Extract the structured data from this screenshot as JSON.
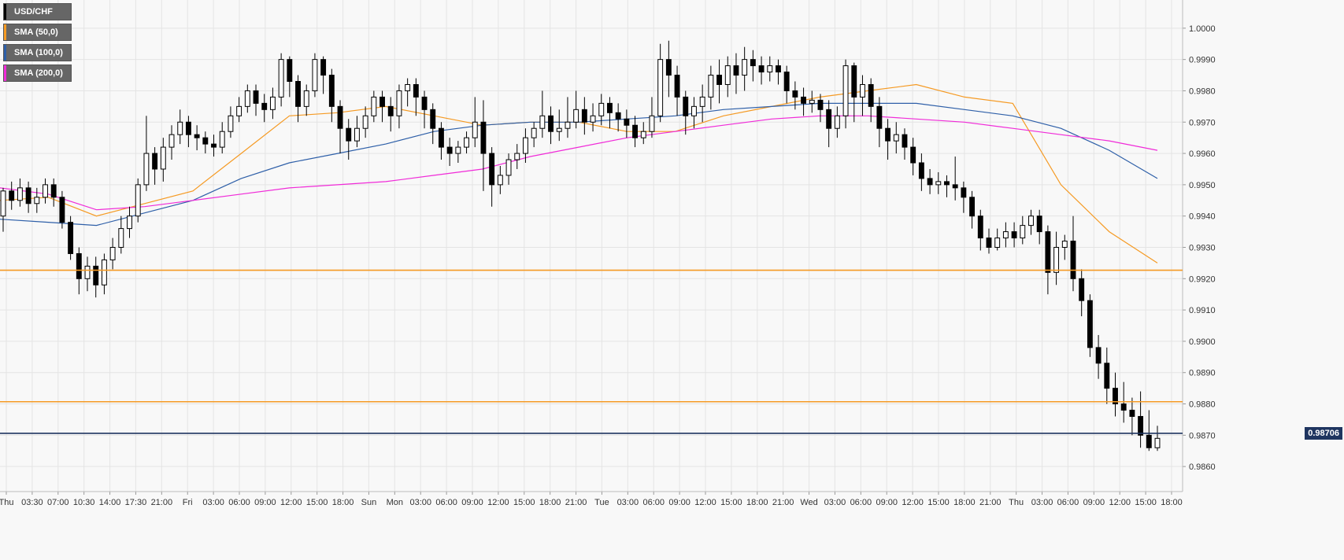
{
  "colors": {
    "background": "#f8f8f8",
    "grid": "#e4e4e4",
    "candle_up": "#ffffff",
    "candle_down": "#000000",
    "sma50": "#f59a23",
    "sma100": "#2e5fa8",
    "sma200": "#f02bd8",
    "hline_orange": "#f59a23",
    "hline_current": "#1f3560"
  },
  "legend": [
    {
      "label": "USD/CHF",
      "color": "#000000"
    },
    {
      "label": "SMA (50,0)",
      "color": "#f59a23"
    },
    {
      "label": "SMA (100,0)",
      "color": "#2e5fa8"
    },
    {
      "label": "SMA (200,0)",
      "color": "#f02bd8"
    }
  ],
  "current_price_label": "0.98706",
  "chart_data": {
    "type": "candlestick",
    "title": "USD/CHF",
    "ylim": [
      0.9852,
      1.0009
    ],
    "y_ticks": [
      "1.0000",
      "0.9990",
      "0.9980",
      "0.9970",
      "0.9960",
      "0.9950",
      "0.9940",
      "0.9930",
      "0.9920",
      "0.9910",
      "0.9900",
      "0.9890",
      "0.9880",
      "0.9870",
      "0.9860"
    ],
    "x_tick_labels": [
      "Thu",
      "03:30",
      "07:00",
      "10:30",
      "14:00",
      "17:30",
      "21:00",
      "Fri",
      "03:00",
      "06:00",
      "09:00",
      "12:00",
      "15:00",
      "18:00",
      "Sun",
      "Mon",
      "03:00",
      "06:00",
      "09:00",
      "12:00",
      "15:00",
      "18:00",
      "21:00",
      "Tue",
      "03:00",
      "06:00",
      "09:00",
      "12:00",
      "15:00",
      "18:00",
      "21:00",
      "Wed",
      "03:00",
      "06:00",
      "09:00",
      "12:00",
      "15:00",
      "18:00",
      "21:00",
      "Thu",
      "03:00",
      "06:00",
      "09:00",
      "12:00",
      "15:00",
      "18:00"
    ],
    "horizontal_lines": [
      {
        "value": 0.99227,
        "color": "#f59a23"
      },
      {
        "value": 0.98807,
        "color": "#f59a23"
      },
      {
        "value": 0.98706,
        "color": "#1f3560"
      }
    ],
    "series": [
      {
        "name": "SMA (50,0)",
        "values": [
          0.9945,
          0.9946,
          0.994,
          0.9944,
          0.9948,
          0.996,
          0.9972,
          0.9973,
          0.9975,
          0.9972,
          0.9969,
          0.997,
          0.997,
          0.9967,
          0.9967,
          0.9972,
          0.9975,
          0.9978,
          0.998,
          0.9982,
          0.9978,
          0.9976,
          0.995,
          0.9935,
          0.9925
        ]
      },
      {
        "name": "SMA (100,0)",
        "values": [
          0.9939,
          0.9938,
          0.9937,
          0.9941,
          0.9945,
          0.9952,
          0.9957,
          0.996,
          0.9963,
          0.9967,
          0.9969,
          0.997,
          0.997,
          0.9971,
          0.9972,
          0.9974,
          0.9975,
          0.9976,
          0.9976,
          0.9976,
          0.9974,
          0.9972,
          0.9968,
          0.9961,
          0.9952
        ]
      },
      {
        "name": "SMA (200,0)",
        "values": [
          0.9949,
          0.9947,
          0.9942,
          0.9943,
          0.9945,
          0.9947,
          0.9949,
          0.995,
          0.9951,
          0.9953,
          0.9955,
          0.9959,
          0.9962,
          0.9965,
          0.9967,
          0.9969,
          0.9971,
          0.9972,
          0.9972,
          0.9971,
          0.997,
          0.9968,
          0.9966,
          0.9964,
          0.9961
        ]
      }
    ],
    "candles": [
      [
        0.994,
        0.9948,
        0.9935,
        0.9949
      ],
      [
        0.9948,
        0.9945,
        0.9942,
        0.9951
      ],
      [
        0.9945,
        0.9949,
        0.9943,
        0.9952
      ],
      [
        0.9949,
        0.9944,
        0.9941,
        0.9951
      ],
      [
        0.9944,
        0.9946,
        0.9941,
        0.9949
      ],
      [
        0.9946,
        0.995,
        0.9944,
        0.9952
      ],
      [
        0.995,
        0.9946,
        0.9943,
        0.9952
      ],
      [
        0.9946,
        0.9938,
        0.9936,
        0.9948
      ],
      [
        0.9938,
        0.9928,
        0.9926,
        0.994
      ],
      [
        0.9928,
        0.992,
        0.9915,
        0.993
      ],
      [
        0.992,
        0.9924,
        0.9916,
        0.9927
      ],
      [
        0.9924,
        0.9918,
        0.9914,
        0.9927
      ],
      [
        0.9918,
        0.9926,
        0.9915,
        0.9928
      ],
      [
        0.9926,
        0.993,
        0.9923,
        0.9933
      ],
      [
        0.993,
        0.9936,
        0.9928,
        0.994
      ],
      [
        0.9936,
        0.994,
        0.9933,
        0.9943
      ],
      [
        0.994,
        0.995,
        0.9938,
        0.9952
      ],
      [
        0.995,
        0.996,
        0.9948,
        0.9972
      ],
      [
        0.996,
        0.9955,
        0.995,
        0.9962
      ],
      [
        0.9955,
        0.9962,
        0.9951,
        0.9965
      ],
      [
        0.9962,
        0.9966,
        0.9958,
        0.9969
      ],
      [
        0.9966,
        0.997,
        0.9963,
        0.9974
      ],
      [
        0.997,
        0.9966,
        0.9962,
        0.9972
      ],
      [
        0.9966,
        0.9965,
        0.9961,
        0.9969
      ],
      [
        0.9965,
        0.9963,
        0.996,
        0.9967
      ],
      [
        0.9963,
        0.9962,
        0.9959,
        0.9966
      ],
      [
        0.9962,
        0.9967,
        0.996,
        0.997
      ],
      [
        0.9967,
        0.9972,
        0.9965,
        0.9975
      ],
      [
        0.9972,
        0.9975,
        0.997,
        0.9978
      ],
      [
        0.9975,
        0.998,
        0.9973,
        0.9982
      ],
      [
        0.998,
        0.9976,
        0.9972,
        0.9982
      ],
      [
        0.9976,
        0.9974,
        0.997,
        0.9979
      ],
      [
        0.9974,
        0.9978,
        0.9971,
        0.9981
      ],
      [
        0.9978,
        0.999,
        0.9975,
        0.9992
      ],
      [
        0.999,
        0.9983,
        0.9978,
        0.9991
      ],
      [
        0.9983,
        0.9975,
        0.997,
        0.9985
      ],
      [
        0.9975,
        0.998,
        0.9972,
        0.9982
      ],
      [
        0.998,
        0.999,
        0.9978,
        0.9992
      ],
      [
        0.999,
        0.9985,
        0.9979,
        0.9991
      ],
      [
        0.9985,
        0.9975,
        0.997,
        0.9987
      ],
      [
        0.9975,
        0.9968,
        0.996,
        0.9977
      ],
      [
        0.9968,
        0.9964,
        0.9958,
        0.9971
      ],
      [
        0.9964,
        0.9968,
        0.9962,
        0.9972
      ],
      [
        0.9968,
        0.9972,
        0.9965,
        0.9975
      ],
      [
        0.9972,
        0.9978,
        0.997,
        0.998
      ],
      [
        0.9978,
        0.9975,
        0.997,
        0.998
      ],
      [
        0.9975,
        0.9972,
        0.9967,
        0.9978
      ],
      [
        0.9972,
        0.998,
        0.9968,
        0.9982
      ],
      [
        0.998,
        0.9982,
        0.9975,
        0.9984
      ],
      [
        0.9982,
        0.9978,
        0.9972,
        0.9984
      ],
      [
        0.9978,
        0.9974,
        0.9968,
        0.998
      ],
      [
        0.9974,
        0.9968,
        0.9963,
        0.9976
      ],
      [
        0.9968,
        0.9962,
        0.9958,
        0.997
      ],
      [
        0.9962,
        0.996,
        0.9956,
        0.9965
      ],
      [
        0.996,
        0.9962,
        0.9957,
        0.9964
      ],
      [
        0.9962,
        0.9965,
        0.996,
        0.9967
      ],
      [
        0.9965,
        0.997,
        0.9962,
        0.9978
      ],
      [
        0.997,
        0.996,
        0.9948,
        0.9977
      ],
      [
        0.996,
        0.995,
        0.9943,
        0.9962
      ],
      [
        0.995,
        0.9953,
        0.9947,
        0.9956
      ],
      [
        0.9953,
        0.9958,
        0.995,
        0.996
      ],
      [
        0.9958,
        0.996,
        0.9955,
        0.9963
      ],
      [
        0.996,
        0.9965,
        0.9957,
        0.9968
      ],
      [
        0.9965,
        0.9968,
        0.9962,
        0.997
      ],
      [
        0.9968,
        0.9972,
        0.9965,
        0.998
      ],
      [
        0.9972,
        0.9967,
        0.9963,
        0.9975
      ],
      [
        0.9967,
        0.9968,
        0.9964,
        0.9974
      ],
      [
        0.9968,
        0.997,
        0.9965,
        0.9978
      ],
      [
        0.997,
        0.9974,
        0.9968,
        0.998
      ],
      [
        0.9974,
        0.997,
        0.9966,
        0.9978
      ],
      [
        0.997,
        0.9972,
        0.9967,
        0.9976
      ],
      [
        0.9972,
        0.9976,
        0.9969,
        0.9979
      ],
      [
        0.9976,
        0.9973,
        0.9968,
        0.9978
      ],
      [
        0.9973,
        0.9971,
        0.9967,
        0.9976
      ],
      [
        0.9971,
        0.9969,
        0.9965,
        0.9974
      ],
      [
        0.9969,
        0.9965,
        0.9962,
        0.9972
      ],
      [
        0.9965,
        0.9967,
        0.9963,
        0.997
      ],
      [
        0.9967,
        0.9972,
        0.9965,
        0.9978
      ],
      [
        0.9972,
        0.999,
        0.997,
        0.9995
      ],
      [
        0.999,
        0.9985,
        0.9978,
        0.9996
      ],
      [
        0.9985,
        0.9978,
        0.9972,
        0.9988
      ],
      [
        0.9978,
        0.9972,
        0.9966,
        0.998
      ],
      [
        0.9972,
        0.9975,
        0.9968,
        0.9978
      ],
      [
        0.9975,
        0.9978,
        0.997,
        0.9982
      ],
      [
        0.9978,
        0.9985,
        0.9974,
        0.9988
      ],
      [
        0.9985,
        0.9982,
        0.9976,
        0.999
      ],
      [
        0.9982,
        0.9988,
        0.9978,
        0.9991
      ],
      [
        0.9988,
        0.9985,
        0.9979,
        0.9992
      ],
      [
        0.9985,
        0.999,
        0.998,
        0.9994
      ],
      [
        0.999,
        0.9988,
        0.9983,
        0.9993
      ],
      [
        0.9988,
        0.9986,
        0.9982,
        0.9991
      ],
      [
        0.9986,
        0.9988,
        0.9983,
        0.9991
      ],
      [
        0.9988,
        0.9986,
        0.9982,
        0.999
      ],
      [
        0.9986,
        0.998,
        0.9976,
        0.9988
      ],
      [
        0.998,
        0.9978,
        0.9974,
        0.9983
      ],
      [
        0.9978,
        0.9976,
        0.9972,
        0.9981
      ],
      [
        0.9976,
        0.9977,
        0.9973,
        0.998
      ],
      [
        0.9977,
        0.9974,
        0.997,
        0.9979
      ],
      [
        0.9974,
        0.9968,
        0.9962,
        0.9977
      ],
      [
        0.9968,
        0.9972,
        0.9965,
        0.9975
      ],
      [
        0.9972,
        0.9988,
        0.9968,
        0.999
      ],
      [
        0.9988,
        0.9978,
        0.997,
        0.9989
      ],
      [
        0.9978,
        0.9982,
        0.9972,
        0.9985
      ],
      [
        0.9982,
        0.9975,
        0.997,
        0.9984
      ],
      [
        0.9975,
        0.9968,
        0.9962,
        0.9978
      ],
      [
        0.9968,
        0.9964,
        0.9958,
        0.9971
      ],
      [
        0.9964,
        0.9966,
        0.996,
        0.997
      ],
      [
        0.9966,
        0.9962,
        0.9958,
        0.9968
      ],
      [
        0.9962,
        0.9957,
        0.9953,
        0.9965
      ],
      [
        0.9957,
        0.9952,
        0.9948,
        0.996
      ],
      [
        0.9952,
        0.995,
        0.9947,
        0.9955
      ],
      [
        0.995,
        0.9951,
        0.9947,
        0.9954
      ],
      [
        0.9951,
        0.995,
        0.9946,
        0.9953
      ],
      [
        0.995,
        0.9949,
        0.9945,
        0.9959
      ],
      [
        0.9949,
        0.9946,
        0.9941,
        0.9951
      ],
      [
        0.9946,
        0.994,
        0.9936,
        0.9948
      ],
      [
        0.994,
        0.9933,
        0.9929,
        0.9942
      ],
      [
        0.9933,
        0.993,
        0.9928,
        0.9936
      ],
      [
        0.993,
        0.9933,
        0.9929,
        0.9936
      ],
      [
        0.9933,
        0.9935,
        0.993,
        0.9938
      ],
      [
        0.9935,
        0.9933,
        0.993,
        0.9938
      ],
      [
        0.9933,
        0.9937,
        0.9931,
        0.994
      ],
      [
        0.9937,
        0.994,
        0.9934,
        0.9942
      ],
      [
        0.994,
        0.9935,
        0.9931,
        0.9942
      ],
      [
        0.9935,
        0.9922,
        0.9915,
        0.9937
      ],
      [
        0.9922,
        0.993,
        0.9918,
        0.9935
      ],
      [
        0.993,
        0.9932,
        0.9926,
        0.9934
      ],
      [
        0.9932,
        0.992,
        0.9916,
        0.994
      ],
      [
        0.992,
        0.9913,
        0.9908,
        0.9923
      ],
      [
        0.9913,
        0.9898,
        0.9895,
        0.9915
      ],
      [
        0.9898,
        0.9893,
        0.9888,
        0.9902
      ],
      [
        0.9893,
        0.9885,
        0.988,
        0.9898
      ],
      [
        0.9885,
        0.988,
        0.9876,
        0.989
      ],
      [
        0.988,
        0.9878,
        0.9874,
        0.9887
      ],
      [
        0.9878,
        0.9876,
        0.987,
        0.9882
      ],
      [
        0.9876,
        0.987,
        0.9866,
        0.9884
      ],
      [
        0.987,
        0.9866,
        0.9865,
        0.9878
      ],
      [
        0.9866,
        0.9869,
        0.9865,
        0.9873
      ]
    ]
  }
}
